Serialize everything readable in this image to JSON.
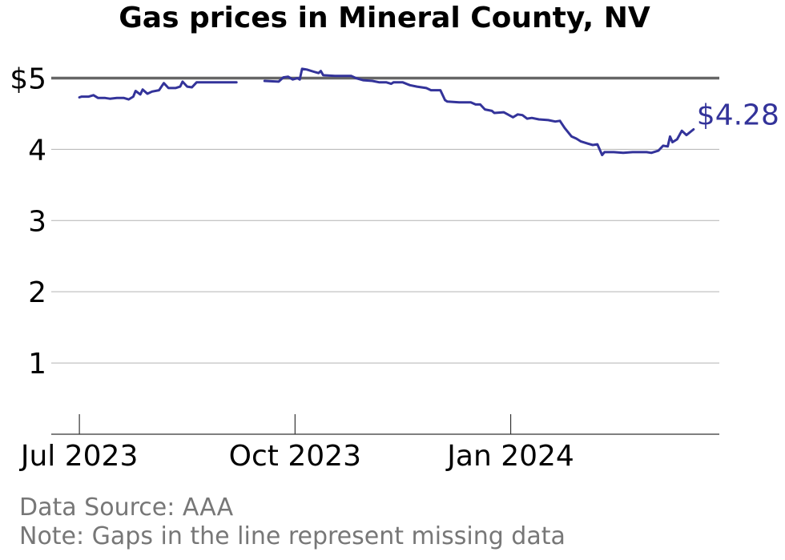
{
  "chart_data": {
    "type": "line",
    "title": "Gas prices in Mineral County, NV",
    "xlabel": "",
    "ylabel": "",
    "x_tick_labels": [
      "Jul 2023",
      "Oct 2023",
      "Jan 2024"
    ],
    "x_ticks": [
      "2023-07-01",
      "2023-10-01",
      "2024-01-01"
    ],
    "xlim": [
      "2023-06-19",
      "2024-03-30"
    ],
    "y_tick_labels": [
      "1",
      "2",
      "3",
      "4",
      "$5"
    ],
    "y_ticks": [
      1,
      2,
      3,
      4,
      5
    ],
    "ylim": [
      0,
      5.5
    ],
    "reference_line": 5,
    "grid": "horizontal",
    "last_value_label": "$4.28",
    "colors": {
      "line": "#33339a",
      "reference": "#666666",
      "grid": "#b3b3b3",
      "note": "#777777"
    },
    "series": [
      {
        "segments": [
          [
            [
              "2023-07-01",
              4.73
            ],
            [
              "2023-07-02",
              4.74
            ],
            [
              "2023-07-05",
              4.74
            ],
            [
              "2023-07-07",
              4.76
            ],
            [
              "2023-07-09",
              4.72
            ],
            [
              "2023-07-12",
              4.72
            ],
            [
              "2023-07-14",
              4.71
            ],
            [
              "2023-07-17",
              4.72
            ],
            [
              "2023-07-20",
              4.72
            ],
            [
              "2023-07-22",
              4.7
            ],
            [
              "2023-07-24",
              4.74
            ],
            [
              "2023-07-25",
              4.82
            ],
            [
              "2023-07-27",
              4.77
            ],
            [
              "2023-07-28",
              4.84
            ],
            [
              "2023-07-30",
              4.78
            ],
            [
              "2023-08-01",
              4.81
            ],
            [
              "2023-08-04",
              4.83
            ],
            [
              "2023-08-06",
              4.93
            ],
            [
              "2023-08-08",
              4.86
            ],
            [
              "2023-08-11",
              4.86
            ],
            [
              "2023-08-13",
              4.88
            ],
            [
              "2023-08-14",
              4.95
            ],
            [
              "2023-08-16",
              4.88
            ],
            [
              "2023-08-18",
              4.87
            ],
            [
              "2023-08-20",
              4.94
            ],
            [
              "2023-08-26",
              4.94
            ],
            [
              "2023-09-06",
              4.94
            ]
          ],
          [
            [
              "2023-09-18",
              4.96
            ],
            [
              "2023-09-24",
              4.95
            ],
            [
              "2023-09-26",
              5.01
            ],
            [
              "2023-09-28",
              5.02
            ],
            [
              "2023-09-30",
              4.98
            ],
            [
              "2023-10-02",
              5.0
            ],
            [
              "2023-10-03",
              4.98
            ],
            [
              "2023-10-04",
              5.13
            ],
            [
              "2023-10-06",
              5.12
            ],
            [
              "2023-10-09",
              5.09
            ],
            [
              "2023-10-11",
              5.07
            ],
            [
              "2023-10-12",
              5.1
            ],
            [
              "2023-10-13",
              5.04
            ],
            [
              "2023-10-18",
              5.03
            ],
            [
              "2023-10-22",
              5.03
            ],
            [
              "2023-10-25",
              5.03
            ],
            [
              "2023-10-27",
              5.0
            ],
            [
              "2023-10-30",
              4.97
            ],
            [
              "2023-11-03",
              4.96
            ],
            [
              "2023-11-06",
              4.94
            ],
            [
              "2023-11-09",
              4.94
            ],
            [
              "2023-11-11",
              4.92
            ],
            [
              "2023-11-12",
              4.94
            ],
            [
              "2023-11-16",
              4.94
            ],
            [
              "2023-11-19",
              4.9
            ],
            [
              "2023-11-22",
              4.88
            ],
            [
              "2023-11-26",
              4.86
            ],
            [
              "2023-11-28",
              4.83
            ],
            [
              "2023-12-02",
              4.83
            ],
            [
              "2023-12-04",
              4.69
            ],
            [
              "2023-12-05",
              4.67
            ],
            [
              "2023-12-10",
              4.66
            ],
            [
              "2023-12-15",
              4.66
            ],
            [
              "2023-12-17",
              4.63
            ],
            [
              "2023-12-19",
              4.63
            ],
            [
              "2023-12-21",
              4.56
            ],
            [
              "2023-12-24",
              4.54
            ],
            [
              "2023-12-25",
              4.51
            ],
            [
              "2023-12-29",
              4.52
            ],
            [
              "2024-01-02",
              4.45
            ],
            [
              "2024-01-04",
              4.49
            ],
            [
              "2024-01-06",
              4.48
            ],
            [
              "2024-01-08",
              4.43
            ],
            [
              "2024-01-10",
              4.44
            ],
            [
              "2024-01-13",
              4.42
            ],
            [
              "2024-01-17",
              4.41
            ],
            [
              "2024-01-20",
              4.39
            ],
            [
              "2024-01-22",
              4.4
            ],
            [
              "2024-01-24",
              4.3
            ],
            [
              "2024-01-27",
              4.18
            ],
            [
              "2024-01-29",
              4.15
            ],
            [
              "2024-01-31",
              4.11
            ],
            [
              "2024-02-03",
              4.08
            ],
            [
              "2024-02-05",
              4.06
            ],
            [
              "2024-02-07",
              4.07
            ],
            [
              "2024-02-09",
              3.92
            ],
            [
              "2024-02-10",
              3.96
            ],
            [
              "2024-02-14",
              3.96
            ],
            [
              "2024-02-18",
              3.95
            ],
            [
              "2024-02-22",
              3.96
            ],
            [
              "2024-02-28",
              3.96
            ],
            [
              "2024-03-01",
              3.95
            ],
            [
              "2024-03-04",
              3.98
            ],
            [
              "2024-03-06",
              4.05
            ],
            [
              "2024-03-08",
              4.04
            ],
            [
              "2024-03-09",
              4.18
            ],
            [
              "2024-03-10",
              4.1
            ],
            [
              "2024-03-12",
              4.14
            ],
            [
              "2024-03-14",
              4.26
            ],
            [
              "2024-03-16",
              4.2
            ],
            [
              "2024-03-19",
              4.28
            ]
          ]
        ]
      }
    ]
  },
  "notes": {
    "source": "Data Source: AAA",
    "gaps": "Note: Gaps in the line represent missing data"
  }
}
